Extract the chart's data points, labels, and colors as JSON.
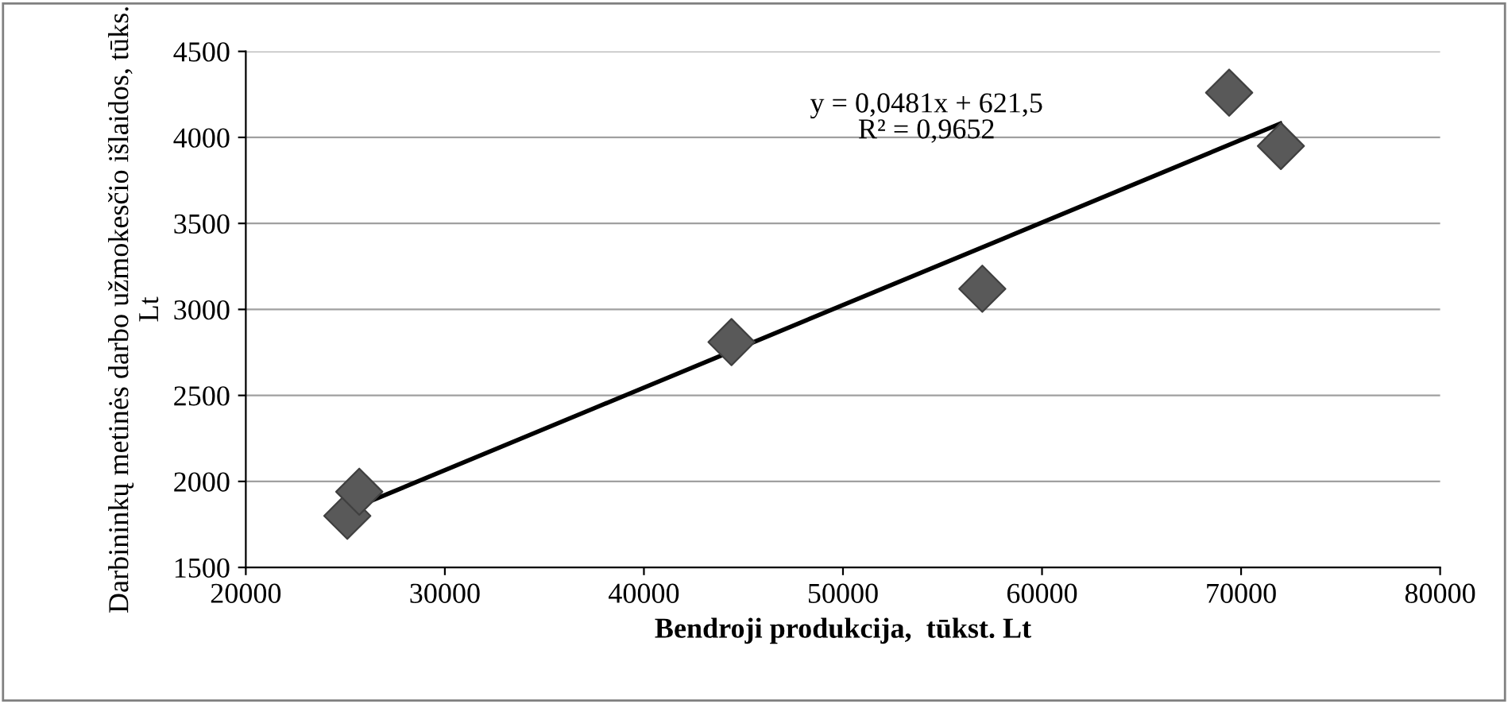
{
  "chart_data": {
    "type": "scatter",
    "xlabel": "Bendroji produkcija,  tūkst. Lt",
    "ylabel": "Darbininkų metinės darbo užmokesčio išlaidos, tūks. Lt",
    "xlim": [
      20000,
      80000
    ],
    "xticks": [
      20000,
      30000,
      40000,
      50000,
      60000,
      70000,
      80000
    ],
    "ylim": [
      1500,
      4500
    ],
    "yticks": [
      1500,
      2000,
      2500,
      3000,
      3500,
      4000,
      4500
    ],
    "grid": "y",
    "legend": false,
    "series": [
      {
        "color": "#595959",
        "marker": "diamond",
        "x": [
          25100,
          25700,
          44400,
          57000,
          69400,
          72000
        ],
        "values": [
          1800,
          1940,
          2810,
          3120,
          4260,
          3950
        ]
      },
      {
        "type": "line",
        "color": "#000000",
        "marker": "none",
        "line_style": "solid",
        "x": [
          25100,
          71970
        ],
        "values": [
          1830,
          4080
        ]
      }
    ],
    "annotations": [
      "y = 0,0481x + 621,5\nR² = 0,9652"
    ]
  }
}
